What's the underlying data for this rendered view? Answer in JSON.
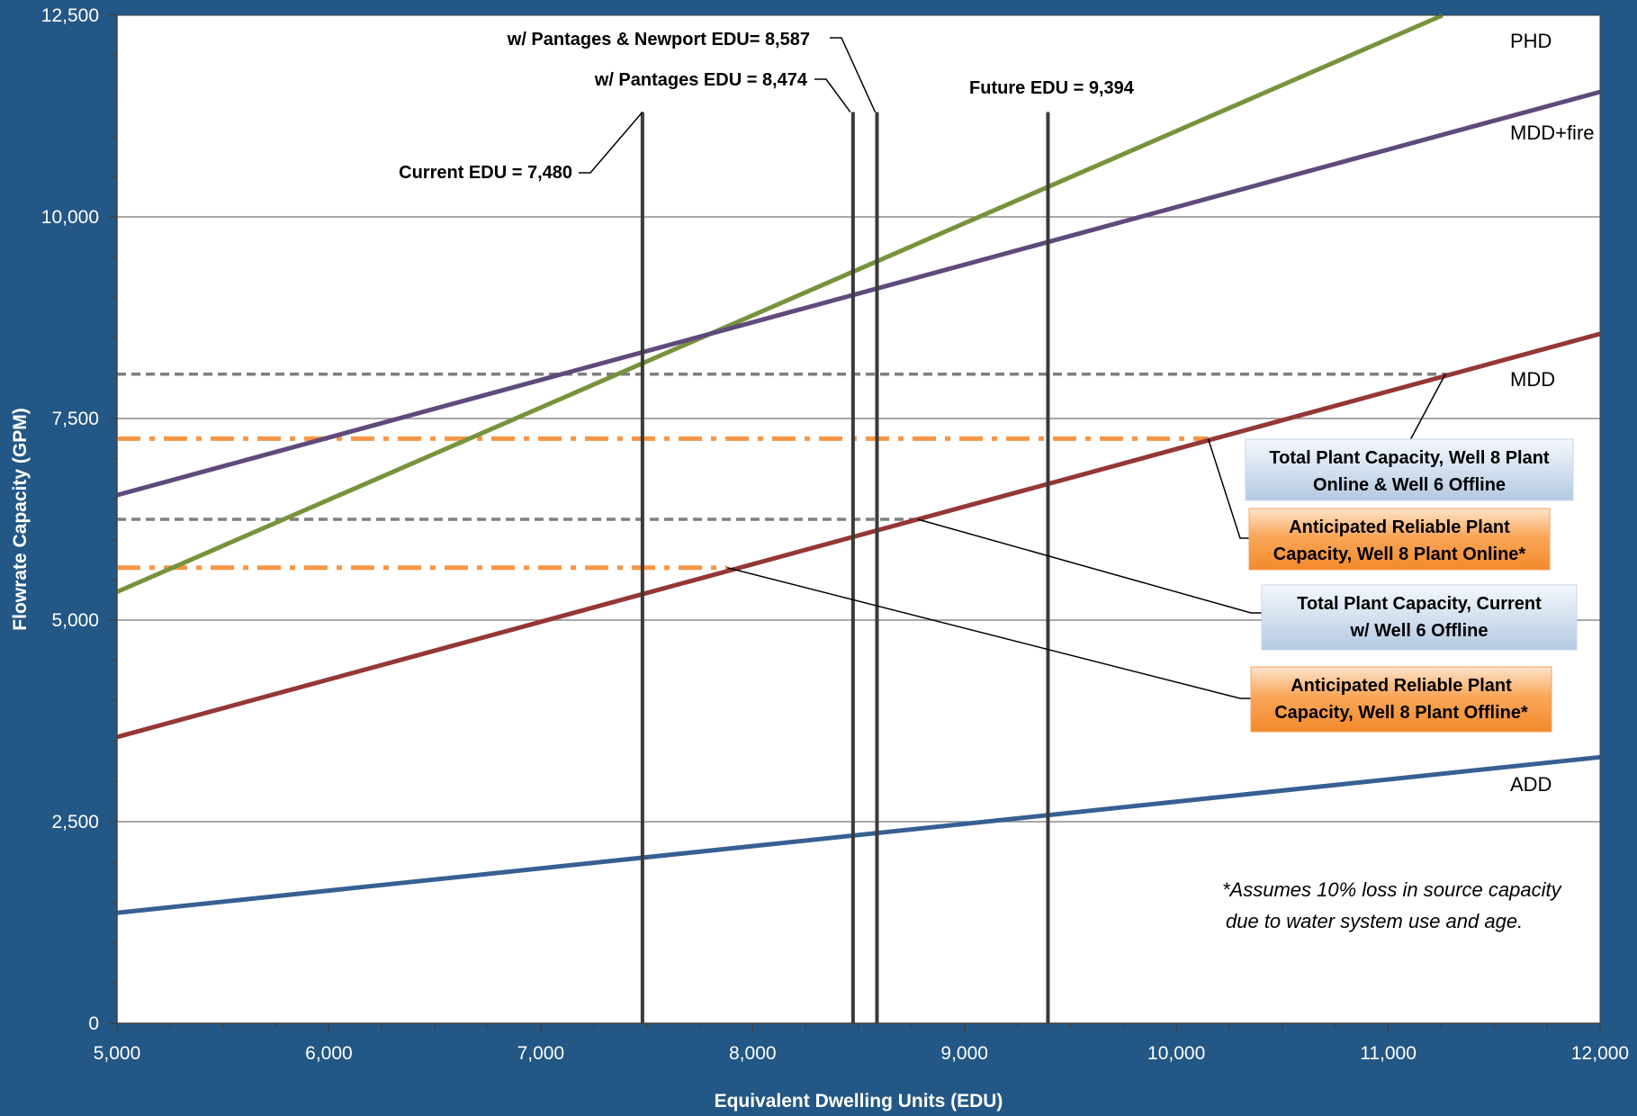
{
  "chart_data": {
    "type": "line",
    "title": "",
    "xlabel": "Equivalent Dwelling Units (EDU)",
    "ylabel": "Flowrate Capacity (GPM)",
    "xlim": [
      5000,
      12000
    ],
    "ylim": [
      0,
      12500
    ],
    "x_ticks": [
      5000,
      6000,
      7000,
      8000,
      9000,
      10000,
      11000,
      12000
    ],
    "x_tick_labels": [
      "5,000",
      "6,000",
      "7,000",
      "8,000",
      "9,000",
      "10,000",
      "11,000",
      "12,000"
    ],
    "y_ticks": [
      0,
      2500,
      5000,
      7500,
      10000,
      12500
    ],
    "y_tick_labels": [
      "0",
      "2,500",
      "5,000",
      "7,500",
      "10,000",
      "12,500"
    ],
    "grid": true,
    "series": [
      {
        "name": "PHD",
        "color": "#77933c",
        "x": [
          5000,
          12000
        ],
        "y": [
          5350,
          13350
        ]
      },
      {
        "name": "MDD+fire",
        "color": "#604a7b",
        "x": [
          5000,
          12000
        ],
        "y": [
          6550,
          11550
        ]
      },
      {
        "name": "MDD",
        "color": "#953735",
        "x": [
          5000,
          12000
        ],
        "y": [
          3550,
          8550
        ]
      },
      {
        "name": "ADD",
        "color": "#376092",
        "x": [
          5000,
          12000
        ],
        "y": [
          1370,
          3300
        ]
      }
    ],
    "capacity_lines": [
      {
        "value": 8050,
        "style": "dashed",
        "color": "#7f7f7f",
        "x_end": 11280
      },
      {
        "value": 7250,
        "style": "dash-dot",
        "color": "#f79646",
        "x_end": 10150
      },
      {
        "value": 6250,
        "style": "dashed",
        "color": "#7f7f7f",
        "x_end": 8780
      },
      {
        "value": 5650,
        "style": "dash-dot",
        "color": "#f79646",
        "x_end": 7880
      }
    ],
    "edu_markers": [
      {
        "label": "Current EDU = 7,480",
        "x": 7480
      },
      {
        "label": "w/ Pantages EDU = 8,474",
        "x": 8474
      },
      {
        "label": "w/ Pantages & Newport EDU= 8,587",
        "x": 8587
      },
      {
        "label": "Future EDU = 9,394",
        "x": 9394
      }
    ],
    "callouts": [
      {
        "lines": [
          "Total Plant Capacity, Well 8 Plant",
          "Online & Well 6 Offline"
        ],
        "style": "blue"
      },
      {
        "lines": [
          "Anticipated Reliable Plant",
          "Capacity, Well 8 Plant Online*"
        ],
        "style": "orange"
      },
      {
        "lines": [
          "Total Plant Capacity, Current",
          "w/ Well 6 Offline"
        ],
        "style": "blue"
      },
      {
        "lines": [
          "Anticipated Reliable Plant",
          "Capacity, Well 8 Plant Offline*"
        ],
        "style": "orange"
      }
    ],
    "annotations": [
      "*Assumes 10% loss in source capacity",
      "due to water system use and age."
    ]
  }
}
